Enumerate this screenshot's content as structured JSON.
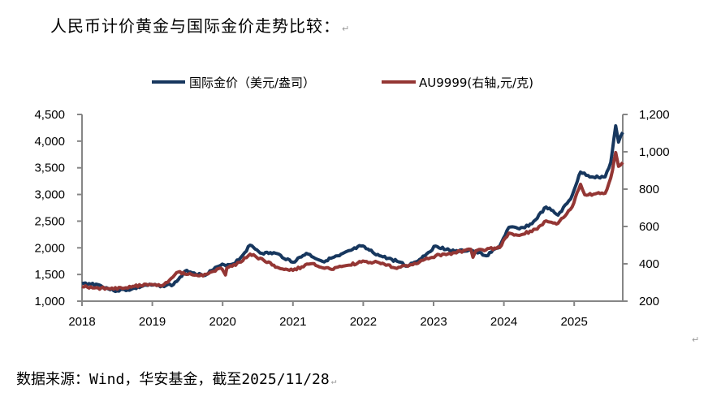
{
  "document": {
    "title": "人民币计价黄金与国际金价走势比较：",
    "return_mark": "↵",
    "footer": "数据来源：Wind，华安基金，截至2025/11/28"
  },
  "chart_data": {
    "type": "line",
    "title": "",
    "legend_position": "top",
    "grid": false,
    "x_ticks": [
      "2018",
      "2019",
      "2020",
      "2021",
      "2022",
      "2023",
      "2024",
      "2025"
    ],
    "xlim": [
      2018,
      2025.7
    ],
    "y_left": {
      "ticks": [
        "1,000",
        "1,500",
        "2,000",
        "2,500",
        "3,000",
        "3,500",
        "4,000",
        "4,500"
      ],
      "lim": [
        1000,
        4500
      ]
    },
    "y_right": {
      "ticks": [
        "200",
        "400",
        "600",
        "800",
        "1,000",
        "1,200"
      ],
      "lim": [
        200,
        1200
      ]
    },
    "series": [
      {
        "name": "国际金价（美元/盎司）",
        "axis": "left",
        "color": "#17375E",
        "x": [
          2018.0,
          2018.2,
          2018.45,
          2018.7,
          2018.91,
          2019.14,
          2019.3,
          2019.49,
          2019.72,
          2019.97,
          2020.15,
          2020.26,
          2020.39,
          2020.56,
          2020.75,
          2021.0,
          2021.19,
          2021.42,
          2021.66,
          2021.97,
          2022.23,
          2022.53,
          2022.61,
          2022.8,
          2023.03,
          2023.3,
          2023.53,
          2023.75,
          2023.94,
          2024.07,
          2024.22,
          2024.4,
          2024.6,
          2024.77,
          2024.95,
          2025.09,
          2025.25,
          2025.44,
          2025.52,
          2025.59,
          2025.63,
          2025.69
        ],
        "y": [
          1330,
          1320,
          1197,
          1220,
          1300,
          1288,
          1310,
          1578,
          1480,
          1669,
          1700,
          1821,
          2050,
          1897,
          1900,
          1730,
          1897,
          1745,
          1852,
          2034,
          1852,
          1730,
          1654,
          1780,
          2034,
          1930,
          1958,
          1850,
          2034,
          2384,
          2354,
          2450,
          2765,
          2613,
          2917,
          3420,
          3330,
          3328,
          3600,
          4287,
          3983,
          4165
        ]
      },
      {
        "name": "AU9999(右轴,元/克)",
        "axis": "right",
        "color": "#943634",
        "x": [
          2018.0,
          2018.2,
          2018.45,
          2018.7,
          2018.91,
          2019.14,
          2019.37,
          2019.72,
          2019.97,
          2020.04,
          2020.06,
          2020.26,
          2020.39,
          2020.8,
          2021.0,
          2021.25,
          2021.55,
          2021.97,
          2022.2,
          2022.45,
          2022.61,
          2022.8,
          2023.03,
          2023.3,
          2023.53,
          2023.56,
          2023.6,
          2023.94,
          2024.07,
          2024.22,
          2024.45,
          2024.6,
          2024.77,
          2024.97,
          2025.09,
          2025.15,
          2025.3,
          2025.44,
          2025.52,
          2025.59,
          2025.63,
          2025.69
        ],
        "y": [
          278,
          272,
          265,
          275,
          291,
          283,
          356,
          335,
          378,
          340,
          378,
          409,
          452,
          378,
          365,
          400,
          370,
          409,
          409,
          378,
          391,
          410,
          443,
          460,
          478,
          435,
          470,
          487,
          565,
          552,
          585,
          630,
          617,
          704,
          826,
          770,
          775,
          778,
          860,
          996,
          922,
          943
        ]
      }
    ]
  }
}
